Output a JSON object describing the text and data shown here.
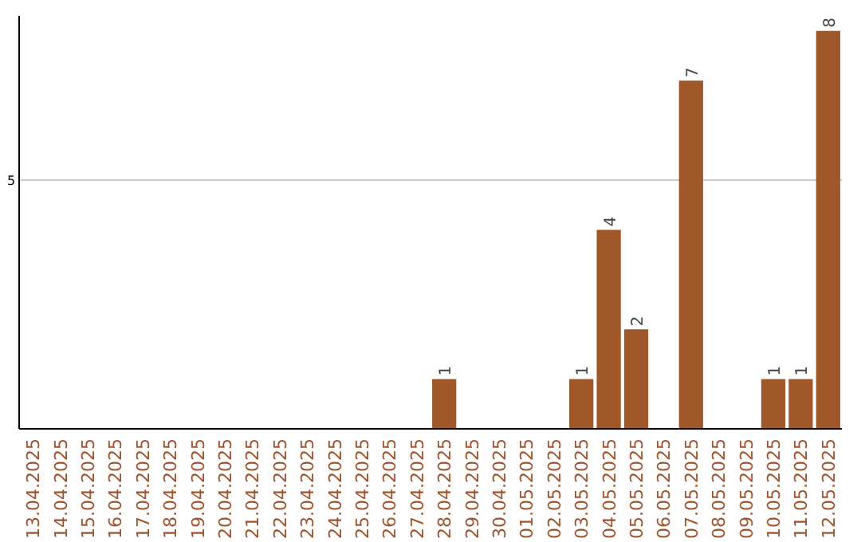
{
  "chart_data": {
    "type": "bar",
    "categories": [
      "13.04.2025",
      "14.04.2025",
      "15.04.2025",
      "16.04.2025",
      "17.04.2025",
      "18.04.2025",
      "19.04.2025",
      "20.04.2025",
      "21.04.2025",
      "22.04.2025",
      "23.04.2025",
      "24.04.2025",
      "25.04.2025",
      "26.04.2025",
      "27.04.2025",
      "28.04.2025",
      "29.04.2025",
      "30.04.2025",
      "01.05.2025",
      "02.05.2025",
      "03.05.2025",
      "04.05.2025",
      "05.05.2025",
      "06.05.2025",
      "07.05.2025",
      "08.05.2025",
      "09.05.2025",
      "10.05.2025",
      "11.05.2025",
      "12.05.2025"
    ],
    "values": [
      null,
      null,
      null,
      null,
      null,
      null,
      null,
      null,
      null,
      null,
      null,
      null,
      null,
      null,
      null,
      1,
      null,
      null,
      null,
      null,
      1,
      4,
      2,
      null,
      7,
      null,
      null,
      1,
      1,
      8
    ],
    "data_labels": true,
    "color": "#a0582a",
    "ylim": [
      0,
      8.3
    ],
    "ref_lines": [
      {
        "axis": "y",
        "value": 5,
        "label": "5",
        "color": "#cccccc"
      }
    ]
  }
}
